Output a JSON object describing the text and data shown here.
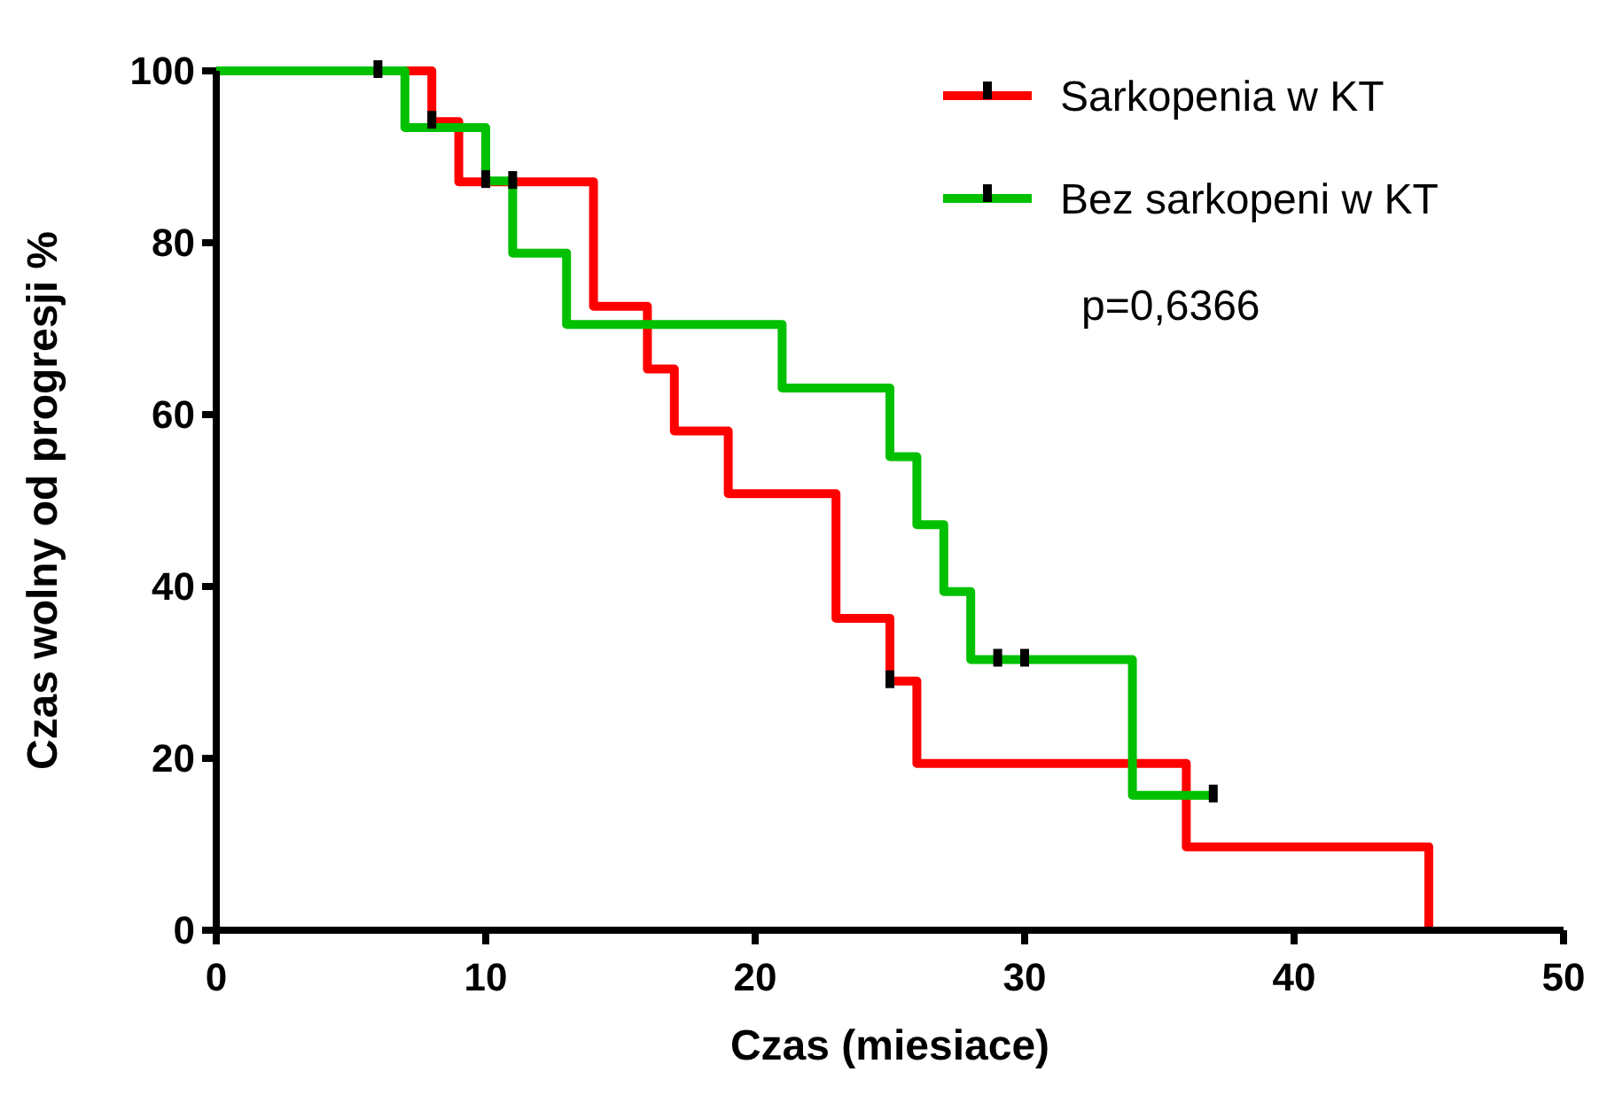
{
  "chart_data": {
    "type": "step",
    "xlabel": "Czas (miesiace)",
    "ylabel": "Czas wolny od progresji %",
    "xlim": [
      0,
      50
    ],
    "xticks": [
      0,
      10,
      20,
      30,
      40,
      50
    ],
    "ylim": [
      0,
      100
    ],
    "yticks": [
      0,
      20,
      40,
      60,
      80,
      100
    ],
    "grid": false,
    "legend": "top right",
    "marker": "none",
    "line_style": "solid",
    "annotations": [
      "p=0,6366"
    ],
    "series": [
      {
        "name": "Sarkopenia w KT",
        "color": "#ff0000",
        "x": [
          0,
          8,
          9,
          14,
          16,
          17,
          19,
          23,
          25,
          26,
          36,
          45
        ],
        "values": [
          100,
          94.1,
          87.1,
          72.6,
          65.3,
          58.1,
          50.8,
          36.3,
          29.0,
          19.4,
          9.7,
          0
        ]
      },
      {
        "name": "Bez sarkopeni w KT",
        "color": "#00c000",
        "x": [
          0,
          7,
          10,
          11,
          13,
          21,
          25,
          26,
          27,
          28,
          34,
          37
        ],
        "values": [
          100,
          93.4,
          87.2,
          78.8,
          70.5,
          63.1,
          55.1,
          47.2,
          39.4,
          31.5,
          15.7,
          15.7
        ]
      },
      {
        "type": "scatter",
        "marker": "square",
        "color": "#000000",
        "x": [
          6,
          8,
          11,
          25
        ],
        "values": [
          100,
          94.1,
          87.1,
          29.0
        ]
      },
      {
        "type": "scatter",
        "marker": "square",
        "color": "#000000",
        "x": [
          10,
          29,
          30,
          37
        ],
        "values": [
          87.2,
          31.5,
          31.5,
          15.7
        ]
      }
    ]
  }
}
